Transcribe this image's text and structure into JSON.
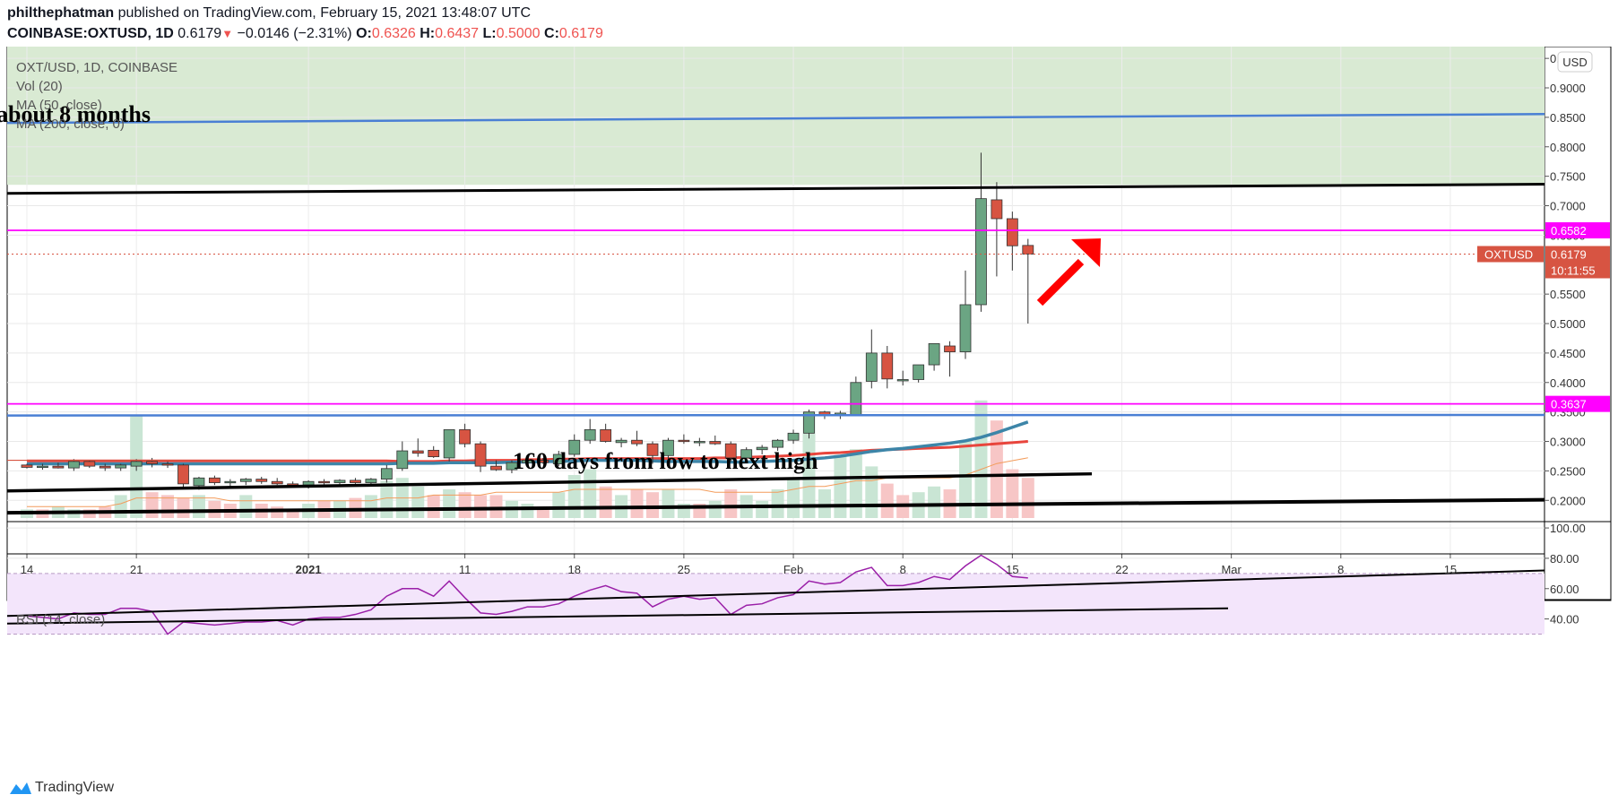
{
  "header": {
    "publisher": "philthephatman",
    "published_text": "published on TradingView.com, February 15, 2021 13:48:07 UTC",
    "symbol_line": "COINBASE:OXTUSD, 1D",
    "last": "0.6179",
    "change": "−0.0146 (−2.31%)",
    "o_label": "O:",
    "o": "0.6326",
    "h_label": "H:",
    "h": "0.6437",
    "l_label": "L:",
    "l": "0.5000",
    "c_label": "C:",
    "c": "0.6179"
  },
  "legend": {
    "pair": "OXT/USD, 1D, COINBASE",
    "vol": "Vol (20)",
    "ma50": "MA (50, close)",
    "ma200": "MA (200, close, 0)",
    "rsi": "RSI (14, close)"
  },
  "annotations": {
    "top_text": "about 8 months",
    "mid_text": "160 days from low to next high"
  },
  "price_labels": {
    "currency": "USD",
    "hline_upper": "0.6582",
    "hline_lower": "0.3637",
    "symbol": "OXTUSD",
    "last_price": "0.6179",
    "countdown": "10:11:55"
  },
  "brand": "TradingView",
  "colors": {
    "up": "#6ba583",
    "down": "#d75442",
    "zone": "#d9ead3",
    "magenta": "#ff00ff",
    "blue_line": "#4a7fd4",
    "ma50": "#3d85a8",
    "ma200": "#e8453c",
    "rsi": "#9a1fa8",
    "rsi_band": "#f3e5fb",
    "arrow": "#ff0000"
  },
  "chart_data": {
    "type": "candlestick",
    "price_axis": {
      "ticks": [
        0.95,
        0.9,
        0.85,
        0.8,
        0.75,
        0.7,
        0.65,
        0.55,
        0.5,
        0.45,
        0.4,
        0.35,
        0.3,
        0.25,
        0.2
      ],
      "tick_labels": [
        "0.9500",
        "0.9000",
        "0.8500",
        "0.8000",
        "0.7500",
        "0.7000",
        "0.6500",
        "0.5500",
        "0.5000",
        "0.4500",
        "0.4000",
        "0.3500",
        "0.3000",
        "0.2500",
        "0.2000"
      ],
      "range": [
        0.17,
        0.97
      ]
    },
    "rsi_axis": {
      "ticks": [
        100,
        80,
        60,
        40
      ],
      "tick_labels": [
        "100.00",
        "80.00",
        "60.00",
        "40.00"
      ],
      "range": [
        25,
        103
      ],
      "band": [
        30,
        70
      ]
    },
    "time_axis": {
      "labels": [
        {
          "i": 0,
          "text": "14"
        },
        {
          "i": 7,
          "text": "21"
        },
        {
          "i": 18,
          "text": "2021"
        },
        {
          "i": 28,
          "text": "11"
        },
        {
          "i": 35,
          "text": "18"
        },
        {
          "i": 42,
          "text": "25"
        },
        {
          "i": 49,
          "text": "Feb"
        },
        {
          "i": 56,
          "text": "8"
        },
        {
          "i": 63,
          "text": "15"
        },
        {
          "i": 70,
          "text": "22"
        },
        {
          "i": 77,
          "text": "Mar"
        },
        {
          "i": 84,
          "text": "8"
        },
        {
          "i": 91,
          "text": "15"
        }
      ]
    },
    "ohlc": [
      [
        0.26,
        0.262,
        0.254,
        0.256
      ],
      [
        0.256,
        0.262,
        0.252,
        0.258
      ],
      [
        0.258,
        0.264,
        0.254,
        0.255
      ],
      [
        0.255,
        0.27,
        0.25,
        0.266
      ],
      [
        0.266,
        0.268,
        0.255,
        0.258
      ],
      [
        0.258,
        0.262,
        0.25,
        0.255
      ],
      [
        0.255,
        0.262,
        0.25,
        0.26
      ],
      [
        0.258,
        0.27,
        0.25,
        0.266
      ],
      [
        0.266,
        0.272,
        0.256,
        0.262
      ],
      [
        0.262,
        0.266,
        0.255,
        0.26
      ],
      [
        0.26,
        0.262,
        0.22,
        0.228
      ],
      [
        0.225,
        0.24,
        0.218,
        0.238
      ],
      [
        0.238,
        0.242,
        0.226,
        0.23
      ],
      [
        0.23,
        0.236,
        0.224,
        0.232
      ],
      [
        0.232,
        0.238,
        0.226,
        0.236
      ],
      [
        0.236,
        0.24,
        0.228,
        0.232
      ],
      [
        0.232,
        0.238,
        0.226,
        0.228
      ],
      [
        0.228,
        0.232,
        0.222,
        0.226
      ],
      [
        0.226,
        0.234,
        0.22,
        0.232
      ],
      [
        0.232,
        0.236,
        0.226,
        0.23
      ],
      [
        0.23,
        0.236,
        0.226,
        0.234
      ],
      [
        0.234,
        0.238,
        0.228,
        0.23
      ],
      [
        0.23,
        0.238,
        0.226,
        0.236
      ],
      [
        0.236,
        0.26,
        0.23,
        0.254
      ],
      [
        0.254,
        0.3,
        0.25,
        0.284
      ],
      [
        0.284,
        0.305,
        0.274,
        0.28
      ],
      [
        0.285,
        0.292,
        0.272,
        0.274
      ],
      [
        0.272,
        0.32,
        0.266,
        0.32
      ],
      [
        0.32,
        0.33,
        0.29,
        0.296
      ],
      [
        0.296,
        0.3,
        0.248,
        0.258
      ],
      [
        0.258,
        0.268,
        0.25,
        0.252
      ],
      [
        0.252,
        0.268,
        0.246,
        0.264
      ],
      [
        0.264,
        0.276,
        0.258,
        0.268
      ],
      [
        0.268,
        0.272,
        0.262,
        0.264
      ],
      [
        0.262,
        0.284,
        0.258,
        0.278
      ],
      [
        0.278,
        0.312,
        0.274,
        0.302
      ],
      [
        0.302,
        0.338,
        0.296,
        0.32
      ],
      [
        0.32,
        0.33,
        0.298,
        0.3
      ],
      [
        0.298,
        0.306,
        0.29,
        0.302
      ],
      [
        0.302,
        0.318,
        0.292,
        0.296
      ],
      [
        0.296,
        0.3,
        0.262,
        0.276
      ],
      [
        0.276,
        0.306,
        0.27,
        0.302
      ],
      [
        0.302,
        0.312,
        0.296,
        0.3
      ],
      [
        0.3,
        0.306,
        0.292,
        0.3
      ],
      [
        0.3,
        0.31,
        0.294,
        0.296
      ],
      [
        0.296,
        0.3,
        0.266,
        0.272
      ],
      [
        0.272,
        0.29,
        0.268,
        0.286
      ],
      [
        0.286,
        0.294,
        0.278,
        0.29
      ],
      [
        0.29,
        0.304,
        0.284,
        0.302
      ],
      [
        0.302,
        0.32,
        0.296,
        0.314
      ],
      [
        0.314,
        0.354,
        0.305,
        0.35
      ],
      [
        0.35,
        0.352,
        0.338,
        0.344
      ],
      [
        0.344,
        0.352,
        0.338,
        0.348
      ],
      [
        0.344,
        0.41,
        0.344,
        0.4
      ],
      [
        0.402,
        0.49,
        0.39,
        0.45
      ],
      [
        0.45,
        0.462,
        0.39,
        0.406
      ],
      [
        0.404,
        0.42,
        0.395,
        0.405
      ],
      [
        0.405,
        0.43,
        0.4,
        0.43
      ],
      [
        0.43,
        0.466,
        0.42,
        0.466
      ],
      [
        0.462,
        0.47,
        0.41,
        0.452
      ],
      [
        0.452,
        0.59,
        0.44,
        0.532
      ],
      [
        0.532,
        0.79,
        0.52,
        0.712
      ],
      [
        0.71,
        0.74,
        0.58,
        0.678
      ],
      [
        0.678,
        0.69,
        0.59,
        0.632
      ],
      [
        0.6326,
        0.6437,
        0.5,
        0.6179
      ]
    ],
    "volume": [
      [
        3,
        "up"
      ],
      [
        3,
        "down"
      ],
      [
        4,
        "up"
      ],
      [
        3,
        "up"
      ],
      [
        3,
        "down"
      ],
      [
        4,
        "down"
      ],
      [
        8,
        "up"
      ],
      [
        36,
        "up"
      ],
      [
        9,
        "down"
      ],
      [
        8,
        "down"
      ],
      [
        7,
        "down"
      ],
      [
        8,
        "up"
      ],
      [
        6,
        "down"
      ],
      [
        5,
        "down"
      ],
      [
        8,
        "up"
      ],
      [
        5,
        "down"
      ],
      [
        4,
        "down"
      ],
      [
        3,
        "down"
      ],
      [
        5,
        "up"
      ],
      [
        6,
        "down"
      ],
      [
        6,
        "up"
      ],
      [
        7,
        "down"
      ],
      [
        8,
        "up"
      ],
      [
        13,
        "up"
      ],
      [
        14,
        "up"
      ],
      [
        11,
        "up"
      ],
      [
        8,
        "down"
      ],
      [
        10,
        "up"
      ],
      [
        9,
        "down"
      ],
      [
        8,
        "down"
      ],
      [
        8,
        "down"
      ],
      [
        6,
        "up"
      ],
      [
        5,
        "up"
      ],
      [
        4,
        "down"
      ],
      [
        9,
        "up"
      ],
      [
        15,
        "up"
      ],
      [
        17,
        "up"
      ],
      [
        11,
        "down"
      ],
      [
        8,
        "up"
      ],
      [
        10,
        "down"
      ],
      [
        9,
        "down"
      ],
      [
        10,
        "up"
      ],
      [
        5,
        "up"
      ],
      [
        5,
        "down"
      ],
      [
        6,
        "up"
      ],
      [
        10,
        "down"
      ],
      [
        8,
        "up"
      ],
      [
        6,
        "up"
      ],
      [
        10,
        "up"
      ],
      [
        14,
        "up"
      ],
      [
        37,
        "up"
      ],
      [
        10,
        "up"
      ],
      [
        22,
        "up"
      ],
      [
        24,
        "up"
      ],
      [
        18,
        "up"
      ],
      [
        12,
        "down"
      ],
      [
        8,
        "down"
      ],
      [
        9,
        "up"
      ],
      [
        11,
        "up"
      ],
      [
        10,
        "down"
      ],
      [
        27,
        "up"
      ],
      [
        41,
        "up"
      ],
      [
        34,
        "down"
      ],
      [
        17,
        "down"
      ],
      [
        14,
        "down"
      ]
    ],
    "ma50": [
      0.262,
      0.262,
      0.262,
      0.262,
      0.262,
      0.262,
      0.262,
      0.262,
      0.262,
      0.262,
      0.262,
      0.262,
      0.262,
      0.262,
      0.262,
      0.262,
      0.262,
      0.262,
      0.262,
      0.262,
      0.262,
      0.262,
      0.262,
      0.262,
      0.263,
      0.263,
      0.263,
      0.264,
      0.264,
      0.264,
      0.264,
      0.265,
      0.265,
      0.266,
      0.266,
      0.267,
      0.268,
      0.268,
      0.268,
      0.268,
      0.267,
      0.266,
      0.266,
      0.266,
      0.266,
      0.265,
      0.265,
      0.266,
      0.267,
      0.268,
      0.27,
      0.272,
      0.275,
      0.279,
      0.283,
      0.286,
      0.288,
      0.291,
      0.294,
      0.297,
      0.301,
      0.307,
      0.315,
      0.324,
      0.333
    ],
    "ma200": [
      0.267,
      0.267,
      0.267,
      0.267,
      0.267,
      0.267,
      0.267,
      0.267,
      0.267,
      0.267,
      0.267,
      0.267,
      0.267,
      0.267,
      0.267,
      0.267,
      0.267,
      0.267,
      0.267,
      0.267,
      0.267,
      0.267,
      0.267,
      0.267,
      0.266,
      0.266,
      0.266,
      0.267,
      0.267,
      0.268,
      0.268,
      0.268,
      0.269,
      0.269,
      0.27,
      0.27,
      0.271,
      0.271,
      0.271,
      0.271,
      0.271,
      0.271,
      0.271,
      0.271,
      0.272,
      0.272,
      0.273,
      0.274,
      0.275,
      0.276,
      0.278,
      0.28,
      0.281,
      0.283,
      0.285,
      0.286,
      0.287,
      0.288,
      0.289,
      0.29,
      0.292,
      0.294,
      0.296,
      0.298,
      0.3
    ],
    "vol_ma": [
      4,
      4,
      4,
      4,
      4,
      4,
      5,
      7,
      7,
      7,
      7,
      7,
      7,
      6,
      6,
      6,
      6,
      6,
      6,
      6,
      6,
      6,
      6,
      7,
      7,
      7,
      8,
      8,
      8,
      8,
      9,
      9,
      9,
      9,
      9,
      10,
      10,
      10,
      10,
      10,
      10,
      10,
      10,
      10,
      9,
      9,
      9,
      9,
      9,
      10,
      11,
      11,
      12,
      13,
      13,
      14,
      14,
      14,
      14,
      14,
      15,
      17,
      19,
      20,
      21
    ],
    "rsi": [
      42,
      41,
      40,
      44,
      43,
      43,
      47,
      47,
      45,
      30,
      38,
      37,
      36,
      37,
      38,
      38,
      39,
      36,
      40,
      41,
      41,
      43,
      46,
      55,
      60,
      60,
      55,
      65,
      54,
      44,
      43,
      45,
      48,
      48,
      50,
      55,
      59,
      62,
      58,
      57,
      48,
      53,
      55,
      53,
      54,
      43,
      49,
      50,
      54,
      56,
      65,
      63,
      64,
      71,
      74,
      62,
      62,
      64,
      68,
      66,
      75,
      82,
      76,
      68,
      67
    ]
  }
}
